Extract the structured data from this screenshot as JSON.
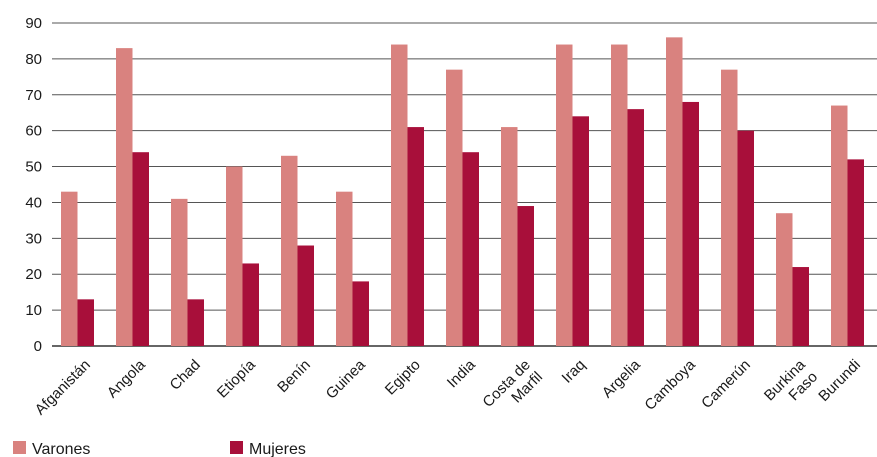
{
  "chart_data": {
    "type": "bar",
    "categories": [
      [
        "Afganistán"
      ],
      [
        "Angola"
      ],
      [
        "Chad"
      ],
      [
        "Etiopía"
      ],
      [
        "Benín"
      ],
      [
        "Guinea"
      ],
      [
        "Egipto"
      ],
      [
        "India"
      ],
      [
        "Costa de",
        "Marfil"
      ],
      [
        "Iraq"
      ],
      [
        "Argelia"
      ],
      [
        "Camboya"
      ],
      [
        "Camerún"
      ],
      [
        "Burkina",
        "Faso"
      ],
      [
        "Burundi"
      ]
    ],
    "series": [
      {
        "name": "Varones",
        "color": "#d9827f",
        "values": [
          43,
          83,
          41,
          50,
          53,
          43,
          84,
          77,
          61,
          84,
          84,
          86,
          77,
          37,
          67
        ]
      },
      {
        "name": "Mujeres",
        "color": "#a80f3a",
        "values": [
          13,
          54,
          13,
          23,
          28,
          18,
          61,
          54,
          39,
          64,
          66,
          68,
          60,
          22,
          52
        ]
      }
    ],
    "ylim": [
      0,
      90
    ],
    "yticks": [
      0,
      10,
      20,
      30,
      40,
      50,
      60,
      70,
      80,
      90
    ],
    "grid": true,
    "legend_position": "bottom-left"
  }
}
